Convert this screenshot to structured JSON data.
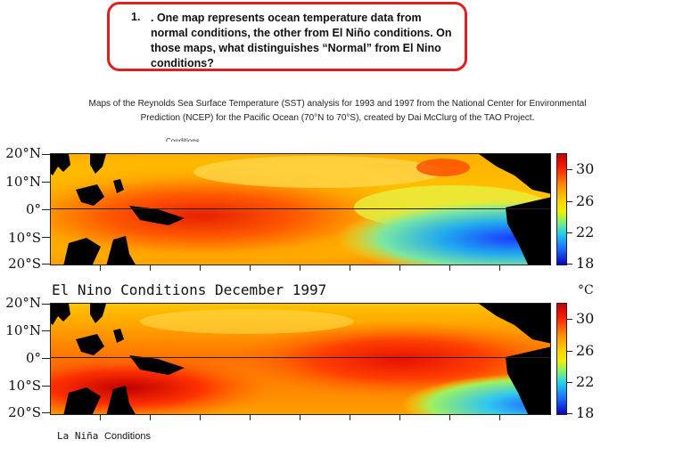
{
  "question": {
    "number": "1.",
    "text": ". One map represents ocean temperature data from normal conditions, the other from El Niño conditions. On those maps, what distinguishes “Normal” from El Nino conditions?"
  },
  "caption": {
    "line1": "Maps of the Reynolds Sea Surface Temperature (SST) analysis for 1993 and 1997 from the National Center for Environmental",
    "line2": "Prediction (NCEP) for the Pacific Ocean (70°N to 70°S), created by Dai McClurg of the TAO Project."
  },
  "map1": {
    "cut_title": "Conditions",
    "lat_labels": [
      "20°N",
      "10°N",
      "0°",
      "10°S",
      "20°S"
    ],
    "colorbar_labels": [
      "30",
      "26",
      "22",
      "18"
    ]
  },
  "map2": {
    "title": "El Nino Conditions December 1997",
    "unit": "°C",
    "lat_labels": [
      "20°N",
      "10°N",
      "0°",
      "10°S",
      "20°S"
    ],
    "colorbar_labels": [
      "30",
      "26",
      "22",
      "18"
    ]
  },
  "bottom_label": {
    "prefix": "La Niña",
    "suffix": "Conditions"
  },
  "colors": {
    "box_border": "#e02020",
    "land": "#000000",
    "warm": "#d00000",
    "cold": "#1a3cff"
  }
}
